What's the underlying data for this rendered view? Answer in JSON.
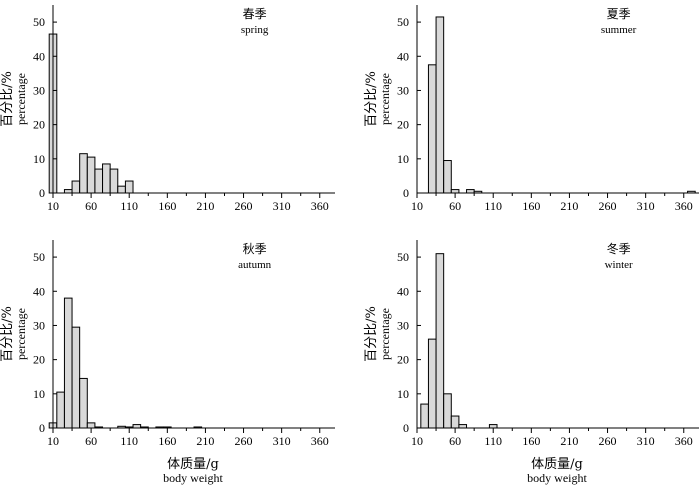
{
  "figure": {
    "ylabel_cn": "百分比/%",
    "ylabel_en": "percentage",
    "xlabel_cn": "体质量/g",
    "xlabel_en": "body weight"
  },
  "chart_data": [
    {
      "type": "bar",
      "title_cn": "春季",
      "title_en": "spring",
      "x": [
        10,
        20,
        30,
        40,
        50,
        60,
        70,
        80,
        90,
        100,
        110
      ],
      "values": [
        46.5,
        0,
        1,
        3.5,
        11.5,
        10.5,
        7,
        8.5,
        7,
        2,
        3.5
      ],
      "xticks": [
        10,
        60,
        110,
        160,
        210,
        260,
        310,
        360
      ],
      "yticks": [
        0,
        10,
        20,
        30,
        40,
        50
      ],
      "xlim": [
        10,
        380
      ],
      "ylim": [
        0,
        55
      ]
    },
    {
      "type": "bar",
      "title_cn": "夏季",
      "title_en": "summer",
      "x": [
        30,
        40,
        50,
        60,
        70,
        80,
        90,
        370
      ],
      "values": [
        37.5,
        51.5,
        9.5,
        1,
        0,
        1,
        0.5,
        0.5
      ],
      "xticks": [
        10,
        60,
        110,
        160,
        210,
        260,
        310,
        360
      ],
      "yticks": [
        0,
        10,
        20,
        30,
        40,
        50
      ],
      "xlim": [
        10,
        380
      ],
      "ylim": [
        0,
        55
      ]
    },
    {
      "type": "bar",
      "title_cn": "秋季",
      "title_en": "autumn",
      "x": [
        10,
        20,
        30,
        40,
        50,
        60,
        70,
        80,
        90,
        100,
        110,
        120,
        130,
        140,
        150,
        160,
        170,
        180,
        190,
        200
      ],
      "values": [
        1.5,
        10.5,
        38,
        29.5,
        14.5,
        1.5,
        0.3,
        0,
        0,
        0.5,
        0.3,
        1,
        0.3,
        0,
        0.3,
        0.3,
        0,
        0,
        0,
        0.3
      ],
      "xticks": [
        10,
        60,
        110,
        160,
        210,
        260,
        310,
        360
      ],
      "yticks": [
        0,
        10,
        20,
        30,
        40,
        50
      ],
      "xlim": [
        10,
        380
      ],
      "ylim": [
        0,
        55
      ]
    },
    {
      "type": "bar",
      "title_cn": "冬季",
      "title_en": "winter",
      "x": [
        20,
        30,
        40,
        50,
        60,
        70,
        110
      ],
      "values": [
        7,
        26,
        51,
        10,
        3.5,
        1,
        1
      ],
      "xticks": [
        10,
        60,
        110,
        160,
        210,
        260,
        310,
        360
      ],
      "yticks": [
        0,
        10,
        20,
        30,
        40,
        50
      ],
      "xlim": [
        10,
        380
      ],
      "ylim": [
        0,
        55
      ]
    }
  ]
}
